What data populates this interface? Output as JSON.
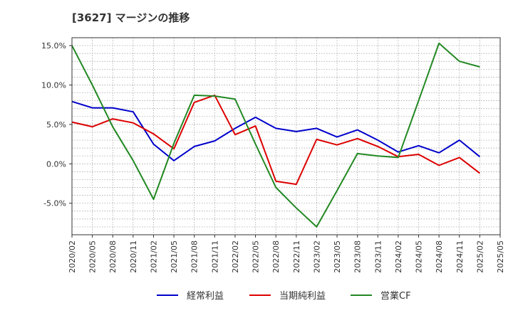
{
  "chart_data": {
    "type": "line",
    "title": "[3627]  マージンの推移",
    "x": [
      "2020/02",
      "2020/05",
      "2020/08",
      "2020/11",
      "2021/02",
      "2021/05",
      "2021/08",
      "2021/11",
      "2022/02",
      "2022/05",
      "2022/08",
      "2022/11",
      "2023/02",
      "2023/05",
      "2023/08",
      "2023/11",
      "2024/02",
      "2024/05",
      "2024/08",
      "2024/11",
      "2025/02",
      "2025/05"
    ],
    "y_ticks": [
      "15.0%",
      "10.0%",
      "5.0%",
      "0.0%",
      "-5.0%"
    ],
    "y_tick_values": [
      15,
      10,
      5,
      0,
      -5
    ],
    "ylim": [
      -9,
      16
    ],
    "grid": true,
    "legend_position": "bottom",
    "series": [
      {
        "name": "経常利益",
        "color": "#0000cc",
        "values": [
          7.9,
          7.1,
          7.1,
          6.6,
          2.5,
          0.4,
          2.2,
          2.9,
          4.5,
          5.9,
          4.5,
          4.1,
          4.5,
          3.4,
          4.3,
          3.0,
          1.5,
          2.3,
          1.4,
          3.0,
          0.9,
          null
        ]
      },
      {
        "name": "当期純利益",
        "color": "#dd0000",
        "values": [
          5.3,
          4.7,
          5.7,
          5.2,
          3.8,
          1.9,
          7.8,
          8.7,
          3.7,
          4.8,
          -2.2,
          -2.6,
          3.1,
          2.4,
          3.2,
          2.2,
          0.9,
          1.2,
          -0.2,
          0.8,
          -1.2,
          null
        ]
      },
      {
        "name": "営業CF",
        "color": "#228822",
        "values": [
          15.0,
          10.0,
          4.7,
          0.4,
          -4.5,
          2.6,
          8.7,
          8.6,
          8.2,
          2.5,
          -3.0,
          -5.6,
          -8.0,
          -3.4,
          1.3,
          1.0,
          0.8,
          8.0,
          15.3,
          13.0,
          12.3,
          null
        ]
      }
    ]
  }
}
